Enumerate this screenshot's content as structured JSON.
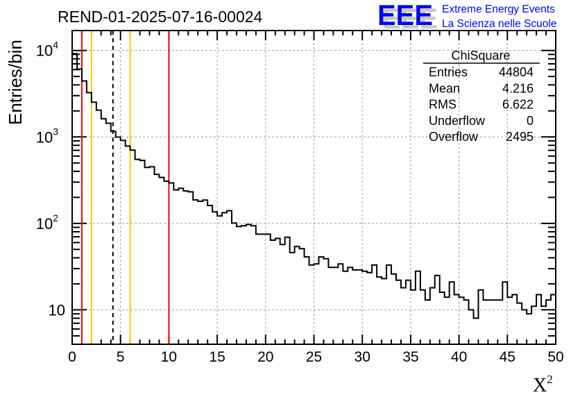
{
  "chart_data": {
    "type": "histogram",
    "title": "REND-01-2025-07-16-00024",
    "xlabel": "X",
    "xlabel_superscript": "2",
    "ylabel": "Entries/bin",
    "xlim": [
      0,
      50
    ],
    "ylim": [
      4,
      17000
    ],
    "yscale": "log",
    "grid": true,
    "bin_width": 0.5,
    "x_ticks": [
      "0",
      "5",
      "10",
      "15",
      "20",
      "25",
      "30",
      "35",
      "40",
      "45",
      "50"
    ],
    "x_tick_values": [
      0,
      5,
      10,
      15,
      20,
      25,
      30,
      35,
      40,
      45,
      50
    ],
    "y_ticks": [
      {
        "value": 10,
        "base": "10",
        "exp": ""
      },
      {
        "value": 100,
        "base": "10",
        "exp": "2"
      },
      {
        "value": 1000,
        "base": "10",
        "exp": "3"
      },
      {
        "value": 10000,
        "base": "10",
        "exp": "4"
      }
    ],
    "values": [
      9200,
      6100,
      4440,
      3250,
      2520,
      2040,
      1620,
      1440,
      1160,
      995,
      913,
      783,
      705,
      550,
      535,
      444,
      452,
      369,
      340,
      307,
      294,
      244,
      255,
      237,
      232,
      187,
      180,
      186,
      161,
      136,
      122,
      133,
      140,
      101,
      92,
      94,
      97,
      94,
      75,
      75,
      75,
      64,
      67,
      57,
      69,
      46,
      54,
      51,
      41,
      33,
      34,
      41,
      39,
      31,
      31,
      34,
      28,
      31,
      29,
      29,
      28,
      27,
      33,
      24,
      23,
      33,
      26,
      22,
      18,
      22,
      17,
      28,
      17,
      13,
      18,
      25,
      16,
      14,
      21,
      15,
      14,
      13,
      10,
      8,
      17,
      13,
      13,
      13,
      13,
      21,
      14,
      15,
      12,
      10,
      9,
      11,
      15,
      11,
      13,
      15
    ],
    "vertical_lines": [
      {
        "x": 1,
        "color": "#ff0000",
        "style": "solid"
      },
      {
        "x": 2,
        "color": "#ffcc00",
        "style": "solid"
      },
      {
        "x": 4.216,
        "color": "#000000",
        "style": "dashed"
      },
      {
        "x": 6,
        "color": "#ffcc00",
        "style": "solid"
      },
      {
        "x": 10,
        "color": "#ff0000",
        "style": "solid"
      }
    ],
    "stats": {
      "title": "ChiSquare",
      "rows": [
        {
          "label": "Entries",
          "value": "44804"
        },
        {
          "label": "Mean",
          "value": "4.216"
        },
        {
          "label": "RMS",
          "value": "6.622"
        },
        {
          "label": "Underflow",
          "value": "0"
        },
        {
          "label": "Overflow",
          "value": "2495"
        }
      ]
    }
  },
  "logo": {
    "text": "EEE",
    "line1": "Extreme Energy Events",
    "line2": "La Scienza nelle Scuole",
    "color": "#0000ff",
    "shadow": "#c8c8c8"
  }
}
